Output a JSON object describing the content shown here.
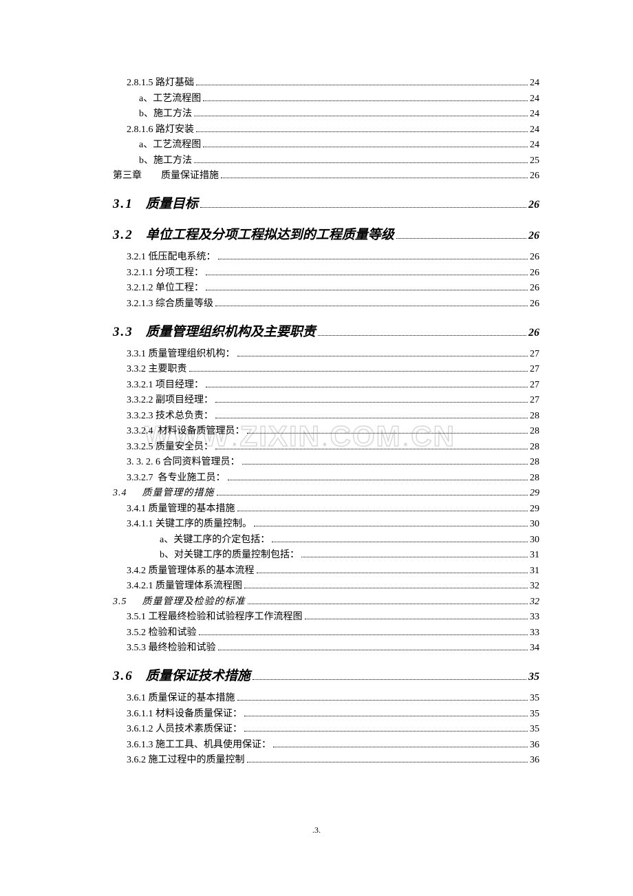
{
  "watermark": "WWW.ZIXIN.COM.CN",
  "footer": ".3.",
  "entries": [
    {
      "kind": "line",
      "indent": "ind1",
      "label": "2.8.1.5 路灯基础",
      "page": "24"
    },
    {
      "kind": "line",
      "indent": "ind2",
      "label": "a、工艺流程图",
      "page": "24"
    },
    {
      "kind": "line",
      "indent": "ind2",
      "label": "b、施工方法",
      "page": "24"
    },
    {
      "kind": "line",
      "indent": "ind1",
      "label": "2.8.1.6 路灯安装",
      "page": "24"
    },
    {
      "kind": "line",
      "indent": "ind2",
      "label": "a、工艺流程图",
      "page": "24"
    },
    {
      "kind": "line",
      "indent": "ind2",
      "label": "b、施工方法",
      "page": "25"
    },
    {
      "kind": "line",
      "indent": "ind0",
      "label": "第三章  质量保证措施",
      "page": "26"
    },
    {
      "kind": "heading",
      "num": "3.1",
      "title": "质量目标",
      "page": "26"
    },
    {
      "kind": "heading",
      "num": "3.2",
      "title": "单位工程及分项工程拟达到的工程质量等级",
      "page": "26"
    },
    {
      "kind": "line",
      "indent": "ind1",
      "label": "3.2.1 低压配电系统：",
      "page": "26"
    },
    {
      "kind": "line",
      "indent": "ind1",
      "label": "3.2.1.1 分项工程：",
      "page": "26"
    },
    {
      "kind": "line",
      "indent": "ind1",
      "label": "3.2.1.2 单位工程：",
      "page": "26"
    },
    {
      "kind": "line",
      "indent": "ind1",
      "label": "3.2.1.3 综合质量等级",
      "page": "26"
    },
    {
      "kind": "heading",
      "num": "3.3",
      "title": "质量管理组织机构及主要职责",
      "page": "26"
    },
    {
      "kind": "line",
      "indent": "ind1",
      "label": "3.3.1 质量管理组织机构：",
      "page": "27"
    },
    {
      "kind": "line",
      "indent": "ind1",
      "label": "3.3.2 主要职责",
      "page": "27"
    },
    {
      "kind": "line",
      "indent": "ind1",
      "label": "3.3.2.1 项目经理：",
      "page": "27"
    },
    {
      "kind": "line",
      "indent": "ind1",
      "label": "3.3.2.2 副项目经理：",
      "page": "27"
    },
    {
      "kind": "line",
      "indent": "ind1",
      "label": "3.3.2.3 技术总负责：",
      "page": "28"
    },
    {
      "kind": "line",
      "indent": "ind1",
      "label": "3.3.2.4 材料设备质管理员：",
      "page": "28"
    },
    {
      "kind": "line",
      "indent": "ind1",
      "label": "3.3.2.5 质量安全员：",
      "page": "28"
    },
    {
      "kind": "line",
      "indent": "ind1",
      "label": "3. 3. 2. 6 合同资料管理员：",
      "page": "28"
    },
    {
      "kind": "line",
      "indent": "ind1",
      "label": "3.3.2.7 各专业施工员：",
      "page": "28"
    },
    {
      "kind": "sub-italic",
      "indent": "ind0",
      "num": "3.4",
      "title": "质量管理的措施",
      "page": "29"
    },
    {
      "kind": "line",
      "indent": "ind1",
      "label": "3.4.1 质量管理的基本措施",
      "page": "29"
    },
    {
      "kind": "line",
      "indent": "ind1",
      "label": "3.4.1.1 关键工序的质量控制。",
      "page": "30"
    },
    {
      "kind": "line",
      "indent": "ind3",
      "label": "a、关键工序的介定包括：",
      "page": "30"
    },
    {
      "kind": "line",
      "indent": "ind3",
      "label": "b、对关键工序的质量控制包括：",
      "page": "31"
    },
    {
      "kind": "line",
      "indent": "ind1",
      "label": "3.4.2 质量管理体系的基本流程",
      "page": "31"
    },
    {
      "kind": "line",
      "indent": "ind1",
      "label": "3.4.2.1 质量管理体系流程图",
      "page": "32"
    },
    {
      "kind": "sub-italic",
      "indent": "ind0",
      "num": "3.5",
      "title": "质量管理及检验的标准",
      "page": "32"
    },
    {
      "kind": "line",
      "indent": "ind1",
      "label": "3.5.1 工程最终检验和试验程序工作流程图",
      "page": "33"
    },
    {
      "kind": "line",
      "indent": "ind1",
      "label": "3.5.2 检验和试验",
      "page": "33"
    },
    {
      "kind": "line",
      "indent": "ind1",
      "label": "3.5.3 最终检验和试验",
      "page": "34"
    },
    {
      "kind": "heading",
      "num": "3.6",
      "title": "质量保证技术措施",
      "page": "35"
    },
    {
      "kind": "line",
      "indent": "ind1",
      "label": "3.6.1 质量保证的基本措施",
      "page": "35"
    },
    {
      "kind": "line",
      "indent": "ind1",
      "label": "3.6.1.1 材料设备质量保证：",
      "page": "35"
    },
    {
      "kind": "line",
      "indent": "ind1",
      "label": "3.6.1.2 人员技术素质保证：",
      "page": "35"
    },
    {
      "kind": "line",
      "indent": "ind1",
      "label": "3.6.1.3 施工工具、机具使用保证：",
      "page": "36"
    },
    {
      "kind": "line",
      "indent": "ind1",
      "label": "3.6.2 施工过程中的质量控制",
      "page": "36"
    }
  ]
}
